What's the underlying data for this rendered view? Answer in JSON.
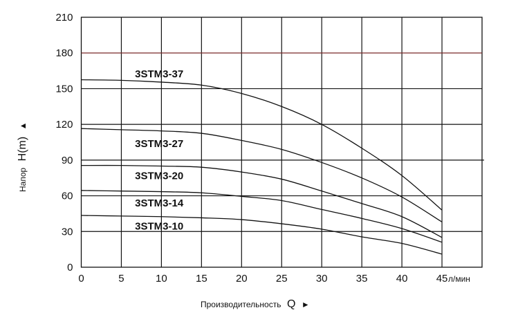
{
  "chart_data": {
    "type": "line",
    "title": "",
    "xlabel": "Производительность",
    "xlabel_symbol": "Q",
    "xlabel_arrow": "►",
    "xunit": "л/мин",
    "ylabel": "Напор",
    "ylabel_symbol": "H(m)",
    "ylabel_arrow": "▲",
    "xlim": [
      0,
      50
    ],
    "ylim": [
      0,
      210
    ],
    "xticks": [
      0,
      5,
      10,
      15,
      20,
      25,
      30,
      35,
      40,
      45
    ],
    "yticks": [
      0,
      30,
      60,
      90,
      120,
      150,
      180,
      210
    ],
    "grid": true,
    "highlight_line": {
      "y": 180,
      "color": "#7a2a2a"
    },
    "x": [
      0,
      5,
      10,
      15,
      20,
      25,
      30,
      35,
      40,
      45
    ],
    "series": [
      {
        "name": "3STM3-37",
        "values": [
          157.5,
          157,
          155.5,
          153,
          146,
          135,
          120,
          100,
          77,
          48
        ],
        "label_at": [
          6.7,
          163
        ]
      },
      {
        "name": "3STM3-27",
        "values": [
          116.5,
          115.5,
          114.5,
          112.5,
          106.5,
          99,
          88,
          75,
          59,
          38
        ],
        "label_at": [
          6.7,
          104.5
        ]
      },
      {
        "name": "3STM3-20",
        "values": [
          85.5,
          85.5,
          85,
          84,
          80,
          74,
          64,
          53.5,
          42.5,
          25
        ],
        "label_at": [
          6.7,
          77.5
        ]
      },
      {
        "name": "3STM3-14",
        "values": [
          64.5,
          64,
          63.5,
          62.5,
          59.5,
          56,
          48.5,
          41,
          32.5,
          21
        ],
        "label_at": [
          6.7,
          54.5
        ]
      },
      {
        "name": "3STM3-10",
        "values": [
          43.5,
          43,
          42.5,
          41.5,
          40,
          36.5,
          32,
          25.5,
          20,
          11
        ],
        "label_at": [
          6.7,
          35
        ]
      }
    ]
  }
}
